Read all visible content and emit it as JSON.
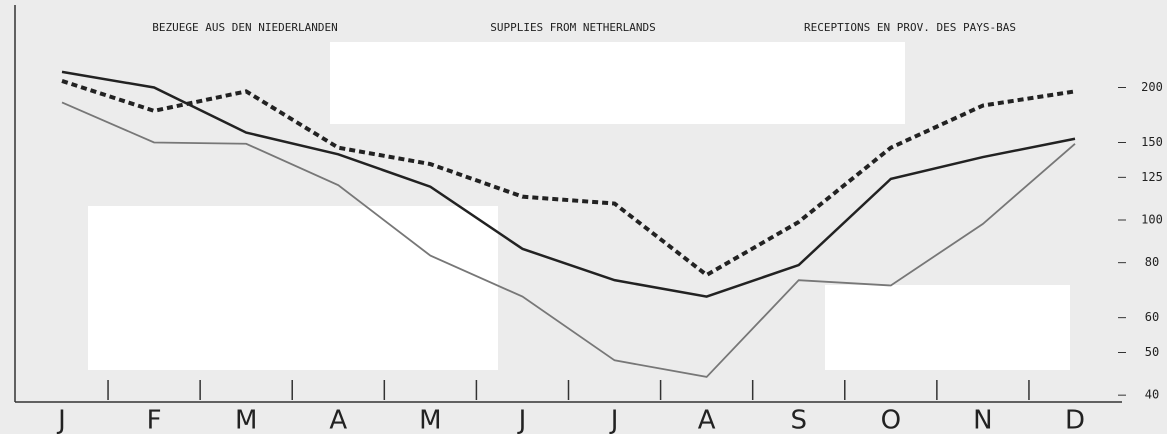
{
  "chart_data": {
    "type": "line",
    "title_de": "BEZUEGE AUS DEN NIEDERLANDEN",
    "title": "SUPPLIES FROM NETHERLANDS",
    "title_fr": "RECEPTIONS EN PROV. DES PAYS-BAS",
    "categories": [
      "J",
      "F",
      "M",
      "A",
      "M",
      "J",
      "J",
      "A",
      "S",
      "O",
      "N",
      "D"
    ],
    "series": [
      {
        "color": "#222222",
        "style": "dashed",
        "values": [
          207,
          177,
          196,
          146,
          134,
          113,
          109,
          75,
          99,
          146,
          182,
          196
        ]
      },
      {
        "color": "#222222",
        "style": "solid",
        "values": [
          217,
          200,
          158,
          141,
          119,
          86,
          73,
          67,
          79,
          124,
          139,
          153
        ]
      },
      {
        "color": "#777777",
        "style": "solid",
        "values": [
          185,
          150,
          149,
          120,
          83,
          67,
          48,
          44,
          73,
          71,
          98,
          149
        ]
      }
    ],
    "ylim": [
      39,
      300
    ],
    "yticks": [
      40,
      50,
      60,
      80,
      100,
      125,
      150,
      200
    ],
    "log_y": true
  }
}
